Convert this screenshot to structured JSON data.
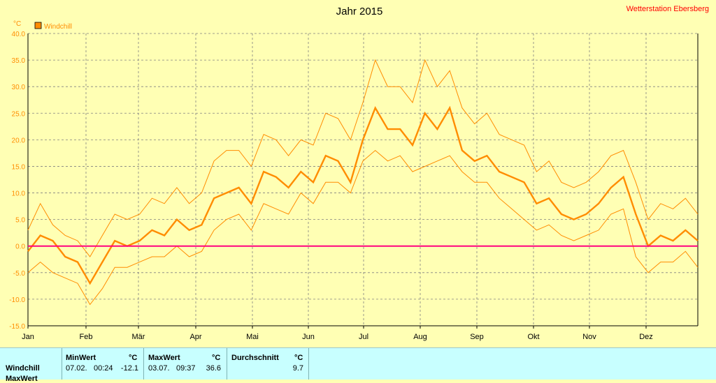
{
  "chart_data": {
    "type": "line",
    "title": "Jahr 2015",
    "station": "Wetterstation Ebersberg",
    "unit": "°C",
    "legend": "Windchill",
    "ylim": [
      -15,
      40
    ],
    "yticks": [
      "40.0",
      "35.0",
      "30.0",
      "25.0",
      "20.0",
      "15.0",
      "10.0",
      "5.0",
      "0.0",
      "-5.0",
      "-10.0",
      "-15.0"
    ],
    "months": [
      "Jan",
      "Feb",
      "Mär",
      "Apr",
      "Mai",
      "Jun",
      "Jul",
      "Aug",
      "Sep",
      "Okt",
      "Nov",
      "Dez"
    ],
    "reference_line": 0,
    "series": [
      {
        "name": "Windchill",
        "resolution": "weekly",
        "avg": [
          -1,
          2,
          1,
          -2,
          -3,
          -7,
          -3,
          1,
          0,
          1,
          3,
          2,
          5,
          3,
          4,
          9,
          10,
          11,
          8,
          14,
          13,
          11,
          14,
          12,
          17,
          16,
          12,
          20,
          26,
          22,
          22,
          19,
          25,
          22,
          26,
          18,
          16,
          17,
          14,
          13,
          12,
          8,
          9,
          6,
          5,
          6,
          8,
          11,
          13,
          6,
          0,
          2,
          1,
          3,
          1
        ],
        "min": [
          -5,
          -3,
          -5,
          -6,
          -7,
          -11,
          -8,
          -4,
          -4,
          -3,
          -2,
          -2,
          0,
          -2,
          -1,
          3,
          5,
          6,
          3,
          8,
          7,
          6,
          10,
          8,
          12,
          12,
          10,
          16,
          18,
          16,
          17,
          14,
          15,
          16,
          17,
          14,
          12,
          12,
          9,
          7,
          5,
          3,
          4,
          2,
          1,
          2,
          3,
          6,
          7,
          -2,
          -5,
          -3,
          -3,
          -1,
          -4
        ],
        "max": [
          3,
          8,
          4,
          2,
          1,
          -2,
          2,
          6,
          5,
          6,
          9,
          8,
          11,
          8,
          10,
          16,
          18,
          18,
          15,
          21,
          20,
          17,
          20,
          19,
          25,
          24,
          20,
          27,
          35,
          30,
          30,
          27,
          35,
          30,
          33,
          26,
          23,
          25,
          21,
          20,
          19,
          14,
          16,
          12,
          11,
          12,
          14,
          17,
          18,
          12,
          5,
          8,
          7,
          9,
          6
        ]
      }
    ],
    "grid": true
  },
  "stats": {
    "row_label": "Windchill",
    "row2_label": "MaxWert",
    "min_header": "MinWert",
    "min_date": "07.02.",
    "min_time": "00:24",
    "min_value": "-12.1",
    "max_header": "MaxWert",
    "max_date": "03.07.",
    "max_time": "09:37",
    "max_value": "36.6",
    "avg_header": "Durchschnitt",
    "avg_value": "9.7",
    "unit": "°C"
  },
  "colors": {
    "background": "#ffffb4",
    "series": "#ff8c00",
    "zero_line": "#ff0080",
    "title": "#000000",
    "station": "#ff0000",
    "stats_bg": "#c8ffff"
  }
}
